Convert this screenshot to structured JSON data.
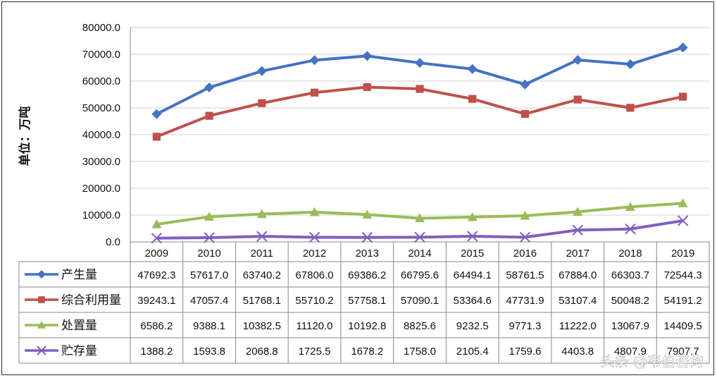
{
  "chart_data": {
    "type": "line",
    "ylabel": "单位：万吨",
    "ylim": [
      0,
      80000
    ],
    "yticks": [
      "0.0",
      "10000.0",
      "20000.0",
      "30000.0",
      "40000.0",
      "50000.0",
      "60000.0",
      "70000.0",
      "80000.0"
    ],
    "categories": [
      "2009",
      "2010",
      "2011",
      "2012",
      "2013",
      "2014",
      "2015",
      "2016",
      "2017",
      "2018",
      "2019"
    ],
    "grid": true,
    "legend": "data-table-left",
    "series": [
      {
        "name": "产生量",
        "color": "#4472C4",
        "marker": "diamond",
        "values": [
          47692.3,
          57617.0,
          63740.2,
          67806.0,
          69386.2,
          66795.6,
          64494.1,
          58761.5,
          67884.0,
          66303.7,
          72544.3
        ],
        "labels": [
          "47692.3",
          "57617.0",
          "63740.2",
          "67806.0",
          "69386.2",
          "66795.6",
          "64494.1",
          "58761.5",
          "67884.0",
          "66303.7",
          "72544.3"
        ]
      },
      {
        "name": "综合利用量",
        "color": "#C0504D",
        "marker": "square",
        "values": [
          39243.1,
          47057.4,
          51768.1,
          55710.2,
          57758.1,
          57090.1,
          53364.6,
          47731.9,
          53107.4,
          50048.2,
          54191.2
        ],
        "labels": [
          "39243.1",
          "47057.4",
          "51768.1",
          "55710.2",
          "57758.1",
          "57090.1",
          "53364.6",
          "47731.9",
          "53107.4",
          "50048.2",
          "54191.2"
        ]
      },
      {
        "name": "处置量",
        "color": "#9BBB59",
        "marker": "triangle",
        "values": [
          6586.2,
          9388.1,
          10382.5,
          11120.0,
          10192.8,
          8825.6,
          9232.5,
          9771.3,
          11222.0,
          13067.9,
          14409.5
        ],
        "labels": [
          "6586.2",
          "9388.1",
          "10382.5",
          "11120.0",
          "10192.8",
          "8825.6",
          "9232.5",
          "9771.3",
          "11222.0",
          "13067.9",
          "14409.5"
        ]
      },
      {
        "name": "贮存量",
        "color": "#7F5FBF",
        "marker": "x",
        "values": [
          1388.2,
          1593.8,
          2068.8,
          1725.5,
          1678.2,
          1758.0,
          2105.4,
          1759.6,
          4403.8,
          4807.9,
          7907.7
        ],
        "labels": [
          "1388.2",
          "1593.8",
          "2068.8",
          "1725.5",
          "1678.2",
          "1758.0",
          "2105.4",
          "1759.6",
          "4403.8",
          "4807.9",
          "7907.7"
        ]
      }
    ]
  },
  "watermark": "头条 @韦伯咨询"
}
